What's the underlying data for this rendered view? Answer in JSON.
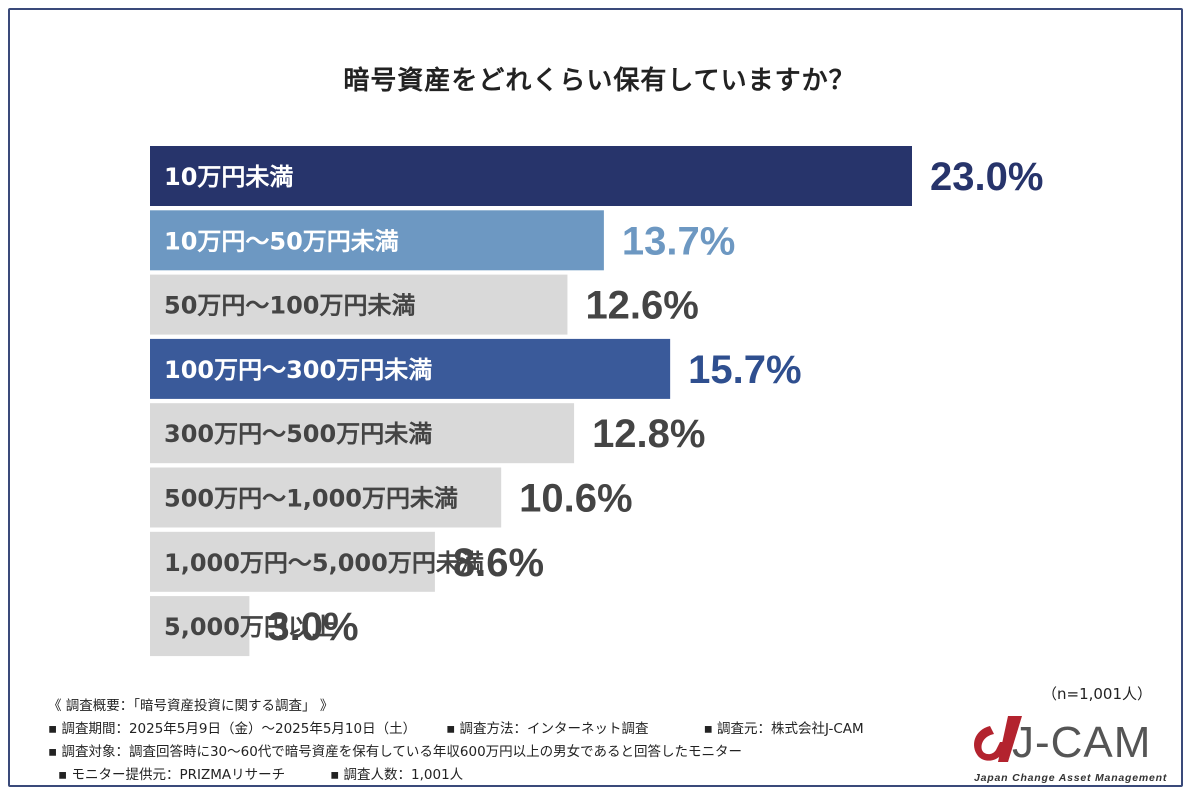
{
  "chart_data": {
    "type": "bar",
    "orientation": "horizontal",
    "title": "暗号資産をどれくらい保有していますか？",
    "categories": [
      "10万円未満",
      "10万円〜50万円未満",
      "50万円〜100万円未満",
      "100万円〜300万円未満",
      "300万円〜500万円未満",
      "500万円〜1,000万円未満",
      "1,000万円〜5,000万円未満",
      "5,000万円以上"
    ],
    "values": [
      23.0,
      13.7,
      12.6,
      15.7,
      12.8,
      10.6,
      8.6,
      3.0
    ],
    "value_labels": [
      "23.0%",
      "13.7%",
      "12.6%",
      "15.7%",
      "12.8%",
      "10.6%",
      "8.6%",
      "3.0%"
    ],
    "bar_colors": [
      "#27346b",
      "#6d98c2",
      "#d9d9d9",
      "#3a5a9a",
      "#d9d9d9",
      "#d9d9d9",
      "#d9d9d9",
      "#d9d9d9"
    ],
    "category_label_colors": [
      "#ffffff",
      "#ffffff",
      "#444444",
      "#ffffff",
      "#444444",
      "#444444",
      "#444444",
      "#444444"
    ],
    "value_label_colors": [
      "#27346b",
      "#6d98c2",
      "#444444",
      "#2f4f8f",
      "#444444",
      "#444444",
      "#444444",
      "#444444"
    ],
    "xlim": [
      0,
      23.0
    ],
    "grid": false,
    "legend": "none"
  },
  "sample_size": "（n=1,001人）",
  "footer": {
    "line1": "《 調査概要：「暗号資産投資に関する調査」 》",
    "period": "▪ 調査期間：2025年5月9日（金）〜2025年5月10日（土）",
    "method": "▪ 調査方法：インターネット調査",
    "source": "▪ 調査元：株式会社J-CAM",
    "target": "▪ 調査対象：調査回答時に30〜60代で暗号資産を保有している年収600万円以上の男女であると回答したモニター",
    "provider": "▪ モニター提供元：PRIZMAリサーチ",
    "count": "▪ 調査人数：1,001人"
  },
  "logo": {
    "name": "J-CAM",
    "tagline": "Japan Change Asset Management",
    "color": "#b3232e"
  }
}
